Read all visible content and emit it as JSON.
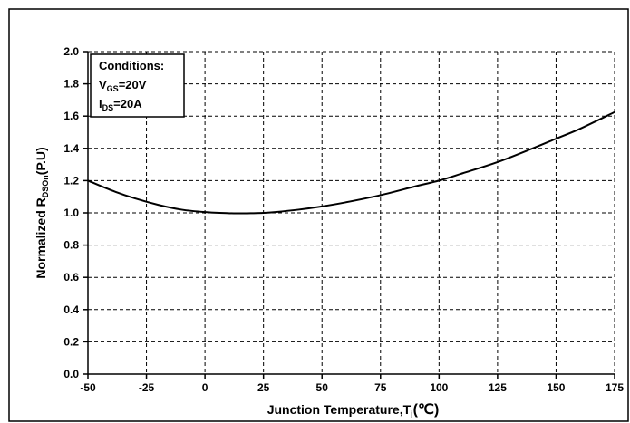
{
  "chart_data": {
    "type": "line",
    "xlabel": "Junction Temperature,T",
    "xlabel_sub": "j",
    "xlabel_unit": "(℃)",
    "ylabel": "Normalized R",
    "ylabel_sub": "DSOn",
    "ylabel_unit": "(P.U)",
    "xlim": [
      -50,
      175
    ],
    "ylim": [
      0.0,
      2.0
    ],
    "x_ticks": [
      -50,
      -25,
      0,
      25,
      50,
      75,
      100,
      125,
      150,
      175
    ],
    "x_tick_labels": [
      "-50",
      "-25",
      "0",
      "25",
      "50",
      "75",
      "100",
      "125",
      "150",
      "175"
    ],
    "y_ticks": [
      0.0,
      0.2,
      0.4,
      0.6,
      0.8,
      1.0,
      1.2,
      1.4,
      1.6,
      1.8,
      2.0
    ],
    "y_tick_labels": [
      "0.0",
      "0.2",
      "0.4",
      "0.6",
      "0.8",
      "1.0",
      "1.2",
      "1.4",
      "1.6",
      "1.8",
      "2.0"
    ],
    "grid": true,
    "legend_position": "top-left",
    "conditions": {
      "title": "Conditions:",
      "lines": [
        {
          "main": "V",
          "sub": "GS",
          "rest": "=20V"
        },
        {
          "main": "I",
          "sub": "DS",
          "rest": "=20A"
        }
      ]
    },
    "series": [
      {
        "x": [
          -50,
          -40,
          -30,
          -20,
          -10,
          0,
          10,
          15,
          20,
          25,
          30,
          40,
          50,
          60,
          75,
          90,
          100,
          110,
          125,
          140,
          150,
          160,
          175
        ],
        "y": [
          1.2,
          1.14,
          1.09,
          1.05,
          1.02,
          1.005,
          0.998,
          0.997,
          0.998,
          1.0,
          1.005,
          1.02,
          1.04,
          1.065,
          1.11,
          1.165,
          1.2,
          1.245,
          1.315,
          1.4,
          1.46,
          1.52,
          1.625
        ]
      }
    ]
  }
}
